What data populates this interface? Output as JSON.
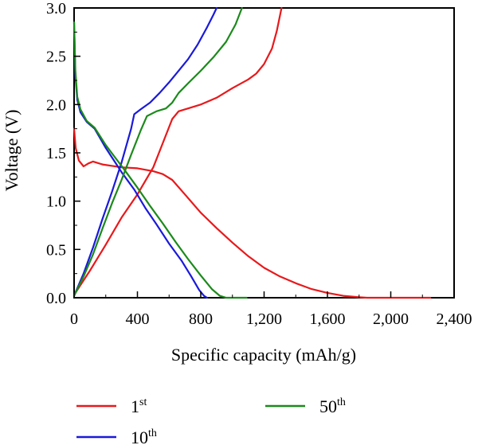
{
  "chart_data": {
    "type": "line",
    "xlabel": "Specific capacity (mAh/g)",
    "ylabel": "Voltage (V)",
    "xlim": [
      0,
      2400
    ],
    "ylim": [
      0,
      3.0
    ],
    "x_ticks": [
      0,
      400,
      800,
      1200,
      1600,
      2000,
      2400
    ],
    "x_tick_labels": [
      "0",
      "400",
      "800",
      "1,200",
      "1,600",
      "2,000",
      "2,400"
    ],
    "y_ticks": [
      0,
      0.5,
      1.0,
      1.5,
      2.0,
      2.5,
      3.0
    ],
    "y_tick_labels": [
      "0.0",
      "0.5",
      "1.0",
      "1.5",
      "2.0",
      "2.5",
      "3.0"
    ],
    "grid": false,
    "legend_position": "bottom",
    "series": [
      {
        "name": "1st",
        "label_base": "1",
        "label_sup": "st",
        "color": "#e8191b",
        "discharge": [
          [
            0,
            1.75
          ],
          [
            10,
            1.55
          ],
          [
            30,
            1.42
          ],
          [
            60,
            1.36
          ],
          [
            90,
            1.39
          ],
          [
            120,
            1.41
          ],
          [
            180,
            1.38
          ],
          [
            300,
            1.35
          ],
          [
            400,
            1.34
          ],
          [
            500,
            1.31
          ],
          [
            560,
            1.28
          ],
          [
            620,
            1.22
          ],
          [
            700,
            1.07
          ],
          [
            800,
            0.88
          ],
          [
            900,
            0.72
          ],
          [
            1000,
            0.57
          ],
          [
            1100,
            0.43
          ],
          [
            1200,
            0.31
          ],
          [
            1300,
            0.22
          ],
          [
            1400,
            0.15
          ],
          [
            1500,
            0.09
          ],
          [
            1600,
            0.05
          ],
          [
            1700,
            0.02
          ],
          [
            1800,
            0.005
          ],
          [
            1850,
            0.0
          ],
          [
            2250,
            0.0
          ]
        ],
        "charge": [
          [
            0,
            0.03
          ],
          [
            100,
            0.28
          ],
          [
            200,
            0.55
          ],
          [
            300,
            0.83
          ],
          [
            400,
            1.07
          ],
          [
            500,
            1.35
          ],
          [
            560,
            1.6
          ],
          [
            620,
            1.85
          ],
          [
            660,
            1.93
          ],
          [
            720,
            1.96
          ],
          [
            800,
            2.0
          ],
          [
            900,
            2.07
          ],
          [
            1000,
            2.17
          ],
          [
            1100,
            2.26
          ],
          [
            1150,
            2.32
          ],
          [
            1200,
            2.42
          ],
          [
            1250,
            2.58
          ],
          [
            1280,
            2.76
          ],
          [
            1310,
            3.0
          ]
        ]
      },
      {
        "name": "10th",
        "label_base": "10",
        "label_sup": "th",
        "color": "#1a1adb",
        "discharge": [
          [
            0,
            2.85
          ],
          [
            8,
            2.3
          ],
          [
            20,
            2.05
          ],
          [
            40,
            1.92
          ],
          [
            80,
            1.82
          ],
          [
            130,
            1.75
          ],
          [
            200,
            1.55
          ],
          [
            260,
            1.4
          ],
          [
            300,
            1.3
          ],
          [
            380,
            1.12
          ],
          [
            450,
            0.93
          ],
          [
            520,
            0.76
          ],
          [
            600,
            0.56
          ],
          [
            680,
            0.38
          ],
          [
            740,
            0.22
          ],
          [
            790,
            0.08
          ],
          [
            820,
            0.02
          ],
          [
            840,
            0.0
          ]
        ],
        "charge": [
          [
            0,
            0.02
          ],
          [
            60,
            0.25
          ],
          [
            120,
            0.52
          ],
          [
            180,
            0.82
          ],
          [
            240,
            1.1
          ],
          [
            300,
            1.4
          ],
          [
            360,
            1.75
          ],
          [
            380,
            1.9
          ],
          [
            420,
            1.95
          ],
          [
            480,
            2.02
          ],
          [
            540,
            2.12
          ],
          [
            600,
            2.23
          ],
          [
            660,
            2.35
          ],
          [
            720,
            2.47
          ],
          [
            780,
            2.62
          ],
          [
            840,
            2.8
          ],
          [
            880,
            2.93
          ],
          [
            900,
            3.0
          ]
        ]
      },
      {
        "name": "50th",
        "label_base": "50",
        "label_sup": "th",
        "color": "#1b8a1b",
        "discharge": [
          [
            0,
            2.85
          ],
          [
            8,
            2.35
          ],
          [
            20,
            2.08
          ],
          [
            40,
            1.95
          ],
          [
            80,
            1.83
          ],
          [
            130,
            1.76
          ],
          [
            200,
            1.58
          ],
          [
            260,
            1.45
          ],
          [
            320,
            1.32
          ],
          [
            400,
            1.14
          ],
          [
            480,
            0.95
          ],
          [
            560,
            0.77
          ],
          [
            640,
            0.58
          ],
          [
            720,
            0.4
          ],
          [
            800,
            0.23
          ],
          [
            870,
            0.09
          ],
          [
            920,
            0.02
          ],
          [
            960,
            0.0
          ],
          [
            1090,
            0.0
          ]
        ],
        "charge": [
          [
            0,
            0.02
          ],
          [
            60,
            0.22
          ],
          [
            120,
            0.45
          ],
          [
            180,
            0.72
          ],
          [
            240,
            0.98
          ],
          [
            300,
            1.22
          ],
          [
            360,
            1.48
          ],
          [
            420,
            1.73
          ],
          [
            460,
            1.88
          ],
          [
            520,
            1.93
          ],
          [
            580,
            1.96
          ],
          [
            620,
            2.02
          ],
          [
            660,
            2.12
          ],
          [
            720,
            2.22
          ],
          [
            800,
            2.35
          ],
          [
            880,
            2.49
          ],
          [
            960,
            2.65
          ],
          [
            1020,
            2.83
          ],
          [
            1060,
            3.0
          ]
        ]
      }
    ]
  }
}
